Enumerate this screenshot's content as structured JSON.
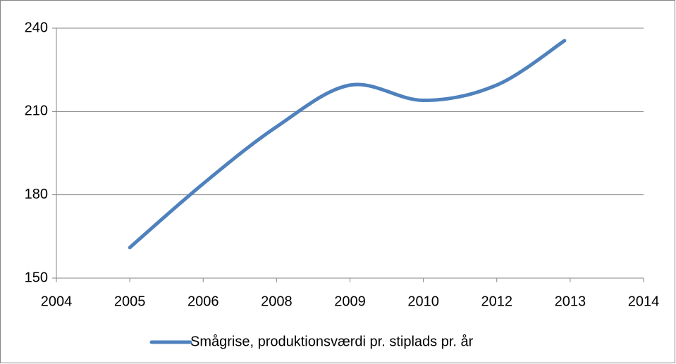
{
  "chart_data": {
    "type": "line",
    "x": [
      2005.5,
      2006.8,
      2008.1,
      2009.4,
      2010.7,
      2012.0,
      2013.2
    ],
    "series": [
      {
        "name": "Smågrise, produktionsværdi pr. stiplads pr. år",
        "color": "#4f81bd",
        "values": [
          161,
          184,
          204.5,
          219.5,
          214,
          219.5,
          235.5
        ]
      }
    ],
    "xlim": [
      2004.2,
      2014.6
    ],
    "xticks": [
      {
        "value": 2004.2,
        "label": "2004"
      },
      {
        "value": 2005.5,
        "label": "2005"
      },
      {
        "value": 2006.8,
        "label": "2006"
      },
      {
        "value": 2008.1,
        "label": "2008"
      },
      {
        "value": 2009.4,
        "label": "2009"
      },
      {
        "value": 2010.7,
        "label": "2010"
      },
      {
        "value": 2012.0,
        "label": "2012"
      },
      {
        "value": 2013.3,
        "label": "2013"
      },
      {
        "value": 2014.6,
        "label": "2014"
      }
    ],
    "ylim": [
      150,
      240
    ],
    "yticks": [
      150,
      180,
      210,
      240
    ],
    "grid": true,
    "legend": "bottom",
    "smooth": true
  }
}
